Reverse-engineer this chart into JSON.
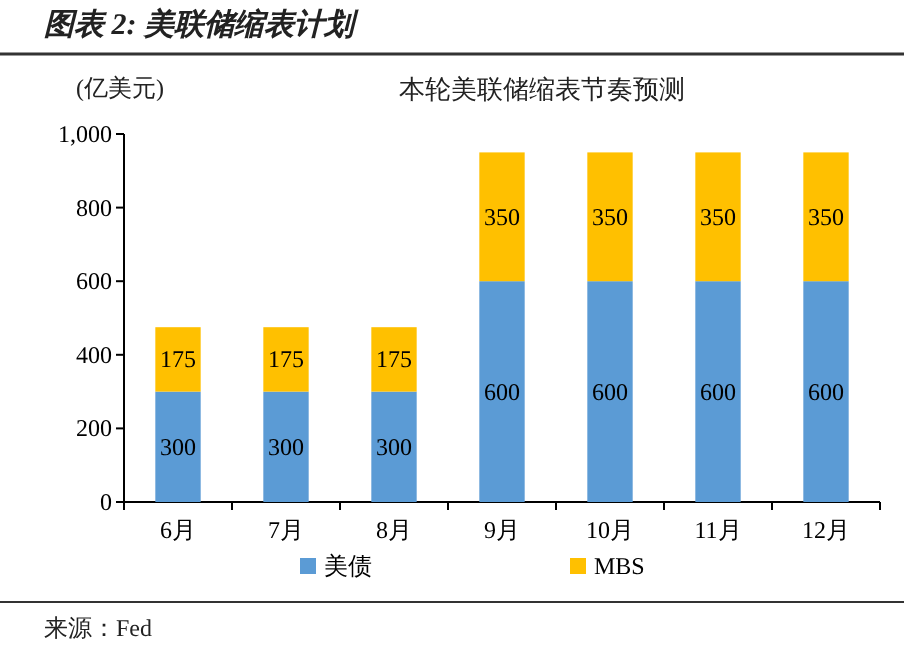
{
  "chart_data": {
    "type": "bar",
    "stacked": true,
    "title": "图表 2: 美联储缩表计划",
    "subtitle": "本轮美联储缩表节奏预测",
    "ylabel": "(亿美元)",
    "categories": [
      "6月",
      "7月",
      "8月",
      "9月",
      "10月",
      "11月",
      "12月"
    ],
    "series": [
      {
        "name": "美债",
        "color": "#5b9bd5",
        "values": [
          300,
          300,
          300,
          600,
          600,
          600,
          600
        ]
      },
      {
        "name": "MBS",
        "color": "#ffc000",
        "values": [
          175,
          175,
          175,
          350,
          350,
          350,
          350
        ]
      }
    ],
    "ylim": [
      0,
      1000
    ],
    "yticks": [
      0,
      200,
      400,
      600,
      800,
      {
        "value": 1000,
        "label": "1,000"
      }
    ],
    "data_labels": true,
    "legend": "bottom",
    "grid": false,
    "annotations": [
      "来源：Fed"
    ]
  }
}
